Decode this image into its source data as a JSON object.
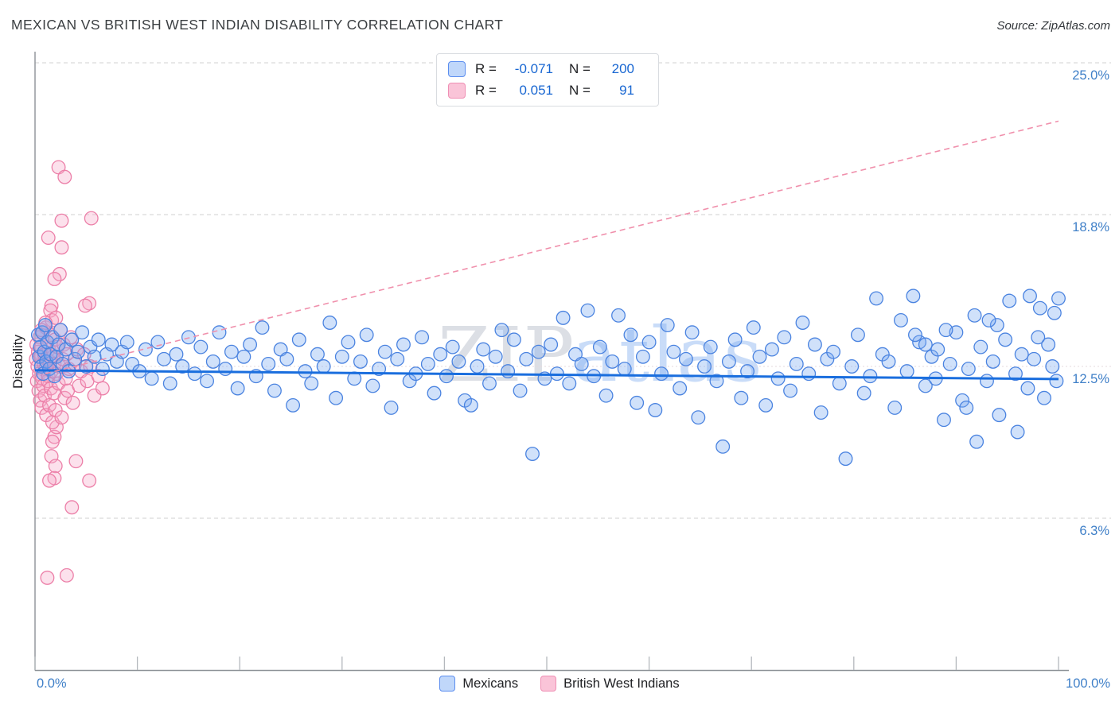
{
  "title": "MEXICAN VS BRITISH WEST INDIAN DISABILITY CORRELATION CHART",
  "source": "Source: ZipAtlas.com",
  "ylabel": "Disability",
  "watermark": {
    "zip": "ZIP",
    "atlas": "atlas"
  },
  "legend_box": {
    "rows": [
      {
        "series": "Mexicans",
        "r_label": "R =",
        "r_value": "-0.071",
        "n_label": "N =",
        "n_value": "200"
      },
      {
        "series": "British West Indians",
        "r_label": "R =",
        "r_value": "0.051",
        "n_label": "N =",
        "n_value": "91"
      }
    ]
  },
  "axis": {
    "x_min_label": "0.0%",
    "x_max_label": "100.0%",
    "y_ticks": [
      {
        "label": "25.0%",
        "value": 25.0
      },
      {
        "label": "18.8%",
        "value": 18.75
      },
      {
        "label": "12.5%",
        "value": 12.5
      },
      {
        "label": "6.3%",
        "value": 6.25
      }
    ]
  },
  "bottom_legend": [
    {
      "label": "Mexicans",
      "fill": "#c0d7fa",
      "border": "#5b8def"
    },
    {
      "label": "British West Indians",
      "fill": "#fac4d8",
      "border": "#ef8fb4"
    }
  ],
  "colors": {
    "blue_stroke": "#4a83e0",
    "blue_fill": "rgba(120,168,240,0.35)",
    "pink_stroke": "#ec7fa8",
    "pink_fill": "rgba(247,170,200,0.35)",
    "blue_trend": "#1a6ede",
    "pink_trend": "#f090ac",
    "grid": "#d2d2d2",
    "grid_mid": "#e6d8dc",
    "axis_line": "#8d9297",
    "tick": "#b4b8bd"
  },
  "chart_data": {
    "type": "scatter",
    "xlabel": "",
    "ylabel": "Disability",
    "xlim": [
      0,
      100
    ],
    "ylim": [
      0,
      25.45
    ],
    "x_unit": "%",
    "y_unit": "%",
    "grid": "dashed horizontal at 25.0, 18.75, 12.5, 6.25",
    "legend_position": "top-center and bottom-center",
    "series": [
      {
        "name": "Mexicans",
        "R": -0.071,
        "N": 200,
        "points": [
          [
            0.3,
            13.8
          ],
          [
            0.4,
            12.9
          ],
          [
            0.5,
            13.3
          ],
          [
            0.6,
            12.5
          ],
          [
            0.7,
            13.9
          ],
          [
            0.8,
            12.2
          ],
          [
            0.9,
            13.1
          ],
          [
            1.0,
            14.2
          ],
          [
            1.1,
            12.7
          ],
          [
            1.2,
            13.5
          ],
          [
            1.4,
            12.4
          ],
          [
            1.5,
            13.0
          ],
          [
            1.7,
            13.7
          ],
          [
            1.9,
            12.1
          ],
          [
            2.1,
            12.9
          ],
          [
            2.3,
            13.4
          ],
          [
            2.5,
            14.0
          ],
          [
            2.7,
            12.6
          ],
          [
            3.0,
            13.2
          ],
          [
            3.3,
            12.3
          ],
          [
            3.6,
            13.6
          ],
          [
            3.9,
            12.8
          ],
          [
            4.2,
            13.1
          ],
          [
            4.6,
            13.9
          ],
          [
            5.0,
            12.5
          ],
          [
            5.4,
            13.3
          ],
          [
            5.8,
            12.9
          ],
          [
            6.2,
            13.6
          ],
          [
            6.6,
            12.4
          ],
          [
            7.0,
            13.0
          ],
          [
            7.5,
            13.4
          ],
          [
            8.0,
            12.7
          ],
          [
            8.5,
            13.1
          ],
          [
            9.0,
            13.5
          ],
          [
            9.5,
            12.6
          ],
          [
            10.2,
            12.3
          ],
          [
            10.8,
            13.2
          ],
          [
            11.4,
            12.0
          ],
          [
            12.0,
            13.5
          ],
          [
            12.6,
            12.8
          ],
          [
            13.2,
            11.8
          ],
          [
            13.8,
            13.0
          ],
          [
            14.4,
            12.5
          ],
          [
            15.0,
            13.7
          ],
          [
            15.6,
            12.2
          ],
          [
            16.2,
            13.3
          ],
          [
            16.8,
            11.9
          ],
          [
            17.4,
            12.7
          ],
          [
            18.0,
            13.9
          ],
          [
            18.6,
            12.4
          ],
          [
            19.2,
            13.1
          ],
          [
            19.8,
            11.6
          ],
          [
            20.4,
            12.9
          ],
          [
            21.0,
            13.4
          ],
          [
            21.6,
            12.1
          ],
          [
            22.2,
            14.1
          ],
          [
            22.8,
            12.6
          ],
          [
            23.4,
            11.5
          ],
          [
            24.0,
            13.2
          ],
          [
            24.6,
            12.8
          ],
          [
            25.2,
            10.9
          ],
          [
            25.8,
            13.6
          ],
          [
            26.4,
            12.3
          ],
          [
            27.0,
            11.8
          ],
          [
            27.6,
            13.0
          ],
          [
            28.2,
            12.5
          ],
          [
            28.8,
            14.3
          ],
          [
            29.4,
            11.2
          ],
          [
            30.0,
            12.9
          ],
          [
            30.6,
            13.5
          ],
          [
            31.2,
            12.0
          ],
          [
            31.8,
            12.7
          ],
          [
            32.4,
            13.8
          ],
          [
            33.0,
            11.7
          ],
          [
            33.6,
            12.4
          ],
          [
            34.2,
            13.1
          ],
          [
            34.8,
            10.8
          ],
          [
            35.4,
            12.8
          ],
          [
            36.0,
            13.4
          ],
          [
            36.6,
            11.9
          ],
          [
            37.2,
            12.2
          ],
          [
            37.8,
            13.7
          ],
          [
            38.4,
            12.6
          ],
          [
            39.0,
            11.4
          ],
          [
            39.6,
            13.0
          ],
          [
            40.2,
            12.1
          ],
          [
            40.8,
            13.3
          ],
          [
            41.4,
            12.7
          ],
          [
            42.0,
            11.1
          ],
          [
            42.6,
            10.9
          ],
          [
            43.2,
            12.5
          ],
          [
            43.8,
            13.2
          ],
          [
            44.4,
            11.8
          ],
          [
            45.0,
            12.9
          ],
          [
            45.6,
            14.0
          ],
          [
            46.2,
            12.3
          ],
          [
            46.8,
            13.6
          ],
          [
            47.4,
            11.5
          ],
          [
            48.0,
            12.8
          ],
          [
            48.6,
            8.9
          ],
          [
            49.2,
            13.1
          ],
          [
            49.8,
            12.0
          ],
          [
            50.4,
            13.4
          ],
          [
            51.0,
            12.2
          ],
          [
            51.6,
            14.5
          ],
          [
            52.2,
            11.8
          ],
          [
            52.8,
            13.0
          ],
          [
            53.4,
            12.6
          ],
          [
            54.0,
            14.8
          ],
          [
            54.6,
            12.1
          ],
          [
            55.2,
            13.3
          ],
          [
            55.8,
            11.3
          ],
          [
            56.4,
            12.7
          ],
          [
            57.0,
            14.6
          ],
          [
            57.6,
            12.4
          ],
          [
            58.2,
            13.8
          ],
          [
            58.8,
            11.0
          ],
          [
            59.4,
            12.9
          ],
          [
            60.0,
            13.5
          ],
          [
            60.6,
            10.7
          ],
          [
            61.2,
            12.2
          ],
          [
            61.8,
            14.2
          ],
          [
            62.4,
            13.1
          ],
          [
            63.0,
            11.6
          ],
          [
            63.6,
            12.8
          ],
          [
            64.2,
            13.9
          ],
          [
            64.8,
            10.4
          ],
          [
            65.4,
            12.5
          ],
          [
            66.0,
            13.3
          ],
          [
            66.6,
            11.9
          ],
          [
            67.2,
            9.2
          ],
          [
            67.8,
            12.7
          ],
          [
            68.4,
            13.6
          ],
          [
            69.0,
            11.2
          ],
          [
            69.6,
            12.3
          ],
          [
            70.2,
            14.1
          ],
          [
            70.8,
            12.9
          ],
          [
            71.4,
            10.9
          ],
          [
            72.0,
            13.2
          ],
          [
            72.6,
            12.0
          ],
          [
            73.2,
            13.7
          ],
          [
            73.8,
            11.5
          ],
          [
            74.4,
            12.6
          ],
          [
            75.0,
            14.3
          ],
          [
            75.6,
            12.2
          ],
          [
            76.2,
            13.4
          ],
          [
            76.8,
            10.6
          ],
          [
            77.4,
            12.8
          ],
          [
            78.0,
            13.1
          ],
          [
            78.6,
            11.8
          ],
          [
            79.2,
            8.7
          ],
          [
            79.8,
            12.5
          ],
          [
            80.4,
            13.8
          ],
          [
            81.0,
            11.4
          ],
          [
            81.6,
            12.1
          ],
          [
            82.2,
            15.3
          ],
          [
            82.8,
            13.0
          ],
          [
            83.4,
            12.7
          ],
          [
            84.0,
            10.8
          ],
          [
            84.6,
            14.4
          ],
          [
            85.2,
            12.3
          ],
          [
            85.8,
            15.4
          ],
          [
            86.4,
            13.5
          ],
          [
            87.0,
            11.7
          ],
          [
            87.6,
            12.9
          ],
          [
            88.2,
            13.2
          ],
          [
            88.8,
            10.3
          ],
          [
            89.4,
            12.6
          ],
          [
            90.0,
            13.9
          ],
          [
            90.6,
            11.1
          ],
          [
            91.2,
            12.4
          ],
          [
            91.8,
            14.6
          ],
          [
            92.4,
            13.3
          ],
          [
            93.0,
            11.9
          ],
          [
            93.6,
            12.7
          ],
          [
            94.2,
            10.5
          ],
          [
            94.8,
            13.6
          ],
          [
            95.2,
            15.2
          ],
          [
            95.8,
            12.2
          ],
          [
            96.4,
            13.0
          ],
          [
            97.0,
            11.6
          ],
          [
            97.2,
            15.4
          ],
          [
            97.6,
            12.8
          ],
          [
            98.2,
            14.9
          ],
          [
            98.6,
            11.2
          ],
          [
            99.0,
            13.4
          ],
          [
            99.4,
            12.5
          ],
          [
            99.6,
            14.7
          ],
          [
            99.8,
            11.9
          ],
          [
            100.0,
            15.3
          ],
          [
            96.0,
            9.8
          ],
          [
            92.0,
            9.4
          ],
          [
            88.0,
            12.0
          ],
          [
            86.0,
            13.8
          ],
          [
            94.0,
            14.2
          ],
          [
            98.0,
            13.7
          ],
          [
            91.0,
            10.8
          ],
          [
            89.0,
            14.0
          ],
          [
            87.0,
            13.4
          ],
          [
            93.2,
            14.4
          ]
        ]
      },
      {
        "name": "British West Indians",
        "R": 0.051,
        "N": 91,
        "points": [
          [
            2.3,
            20.7
          ],
          [
            2.9,
            20.3
          ],
          [
            2.6,
            18.5
          ],
          [
            5.5,
            18.6
          ],
          [
            1.3,
            17.8
          ],
          [
            2.6,
            17.4
          ],
          [
            2.4,
            16.3
          ],
          [
            1.9,
            16.1
          ],
          [
            1.6,
            15.0
          ],
          [
            1.5,
            14.8
          ],
          [
            5.3,
            15.1
          ],
          [
            4.9,
            15.0
          ],
          [
            1.9,
            9.6
          ],
          [
            1.7,
            9.4
          ],
          [
            1.6,
            8.8
          ],
          [
            4.0,
            8.6
          ],
          [
            2.0,
            8.4
          ],
          [
            1.9,
            7.9
          ],
          [
            1.4,
            7.8
          ],
          [
            5.3,
            7.8
          ],
          [
            3.6,
            6.7
          ],
          [
            1.2,
            3.8
          ],
          [
            3.1,
            3.9
          ],
          [
            2.1,
            10.0
          ],
          [
            0.1,
            12.8
          ],
          [
            0.15,
            13.4
          ],
          [
            0.2,
            11.9
          ],
          [
            0.25,
            12.5
          ],
          [
            0.3,
            13.1
          ],
          [
            0.35,
            11.5
          ],
          [
            0.4,
            12.2
          ],
          [
            0.45,
            13.7
          ],
          [
            0.5,
            11.1
          ],
          [
            0.55,
            12.9
          ],
          [
            0.6,
            13.3
          ],
          [
            0.65,
            10.8
          ],
          [
            0.7,
            12.0
          ],
          [
            0.75,
            13.9
          ],
          [
            0.8,
            11.7
          ],
          [
            0.85,
            12.6
          ],
          [
            0.9,
            13.0
          ],
          [
            0.95,
            11.3
          ],
          [
            1.0,
            12.4
          ],
          [
            1.05,
            14.1
          ],
          [
            1.1,
            10.5
          ],
          [
            1.15,
            12.8
          ],
          [
            1.2,
            13.5
          ],
          [
            1.25,
            11.9
          ],
          [
            1.3,
            12.1
          ],
          [
            1.35,
            13.2
          ],
          [
            1.4,
            10.9
          ],
          [
            1.45,
            12.7
          ],
          [
            1.5,
            13.8
          ],
          [
            1.55,
            11.6
          ],
          [
            1.6,
            12.3
          ],
          [
            1.65,
            14.4
          ],
          [
            1.7,
            10.2
          ],
          [
            1.75,
            12.9
          ],
          [
            1.8,
            13.1
          ],
          [
            1.85,
            11.4
          ],
          [
            1.9,
            12.6
          ],
          [
            1.95,
            13.6
          ],
          [
            2.0,
            10.7
          ],
          [
            2.1,
            12.2
          ],
          [
            2.2,
            13.3
          ],
          [
            2.3,
            11.8
          ],
          [
            2.4,
            12.5
          ],
          [
            2.5,
            14.0
          ],
          [
            2.6,
            10.4
          ],
          [
            2.7,
            12.8
          ],
          [
            2.8,
            13.4
          ],
          [
            2.9,
            11.2
          ],
          [
            3.0,
            12.0
          ],
          [
            3.1,
            13.0
          ],
          [
            3.2,
            11.5
          ],
          [
            3.3,
            12.4
          ],
          [
            3.5,
            13.7
          ],
          [
            3.7,
            11.0
          ],
          [
            3.9,
            12.6
          ],
          [
            4.1,
            13.2
          ],
          [
            4.3,
            11.7
          ],
          [
            4.5,
            12.3
          ],
          [
            4.8,
            13.0
          ],
          [
            5.1,
            11.9
          ],
          [
            5.4,
            12.5
          ],
          [
            5.8,
            11.3
          ],
          [
            6.2,
            12.1
          ],
          [
            6.6,
            11.6
          ],
          [
            2.05,
            14.5
          ],
          [
            1.02,
            14.3
          ],
          [
            0.62,
            14.0
          ]
        ]
      }
    ],
    "trend_lines": [
      {
        "name": "Mexicans",
        "style": "solid",
        "points": [
          [
            0,
            12.34
          ],
          [
            100,
            11.98
          ]
        ]
      },
      {
        "name": "British West Indians",
        "style": "dashed",
        "points": [
          [
            1,
            12.2
          ],
          [
            100,
            22.6
          ]
        ]
      }
    ]
  }
}
